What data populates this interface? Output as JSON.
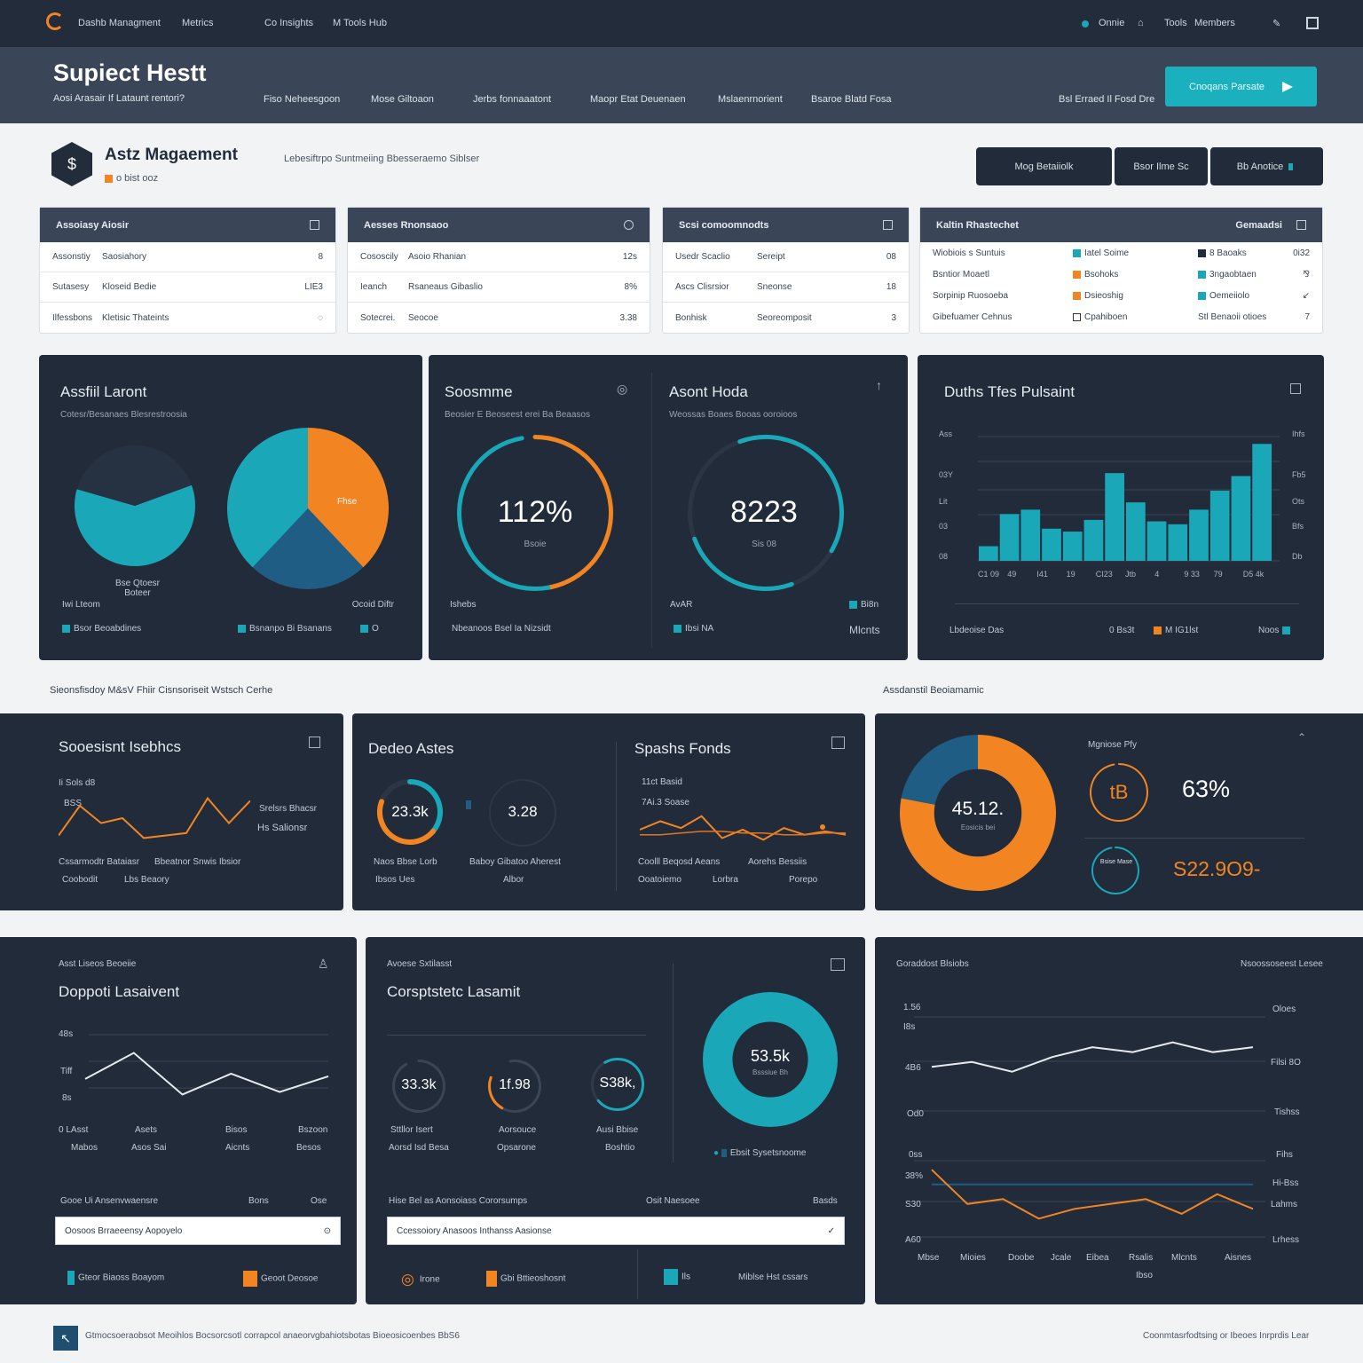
{
  "colors": {
    "teal": "#1aa7b8",
    "orange": "#f28522",
    "navy": "#212b3a",
    "blue": "#1f5d85"
  },
  "topbar": {
    "items": [
      "Dashb Managment",
      "Metrics",
      "Co Insights",
      "M Tools Hub"
    ],
    "right": [
      "Onnie",
      "⌂",
      "Tools",
      "Members",
      "✎"
    ]
  },
  "header": {
    "title": "Supiect Hestt",
    "subtitle": "Aosi Arasair If Lataunt rentori?",
    "tabs": [
      "Fiso Neheesgoon",
      "Mose Giltoaon",
      "Jerbs fonnaaatont",
      "Maopr Etat Deuenaen",
      "Mslaenrnorient",
      "Bsaroe Blatd Fosa"
    ],
    "note": "Bsl Erraed Il Fosd Dre",
    "cta": "Cnoqans Parsate"
  },
  "brand": {
    "title": "Astz Magaement",
    "badge": "o bist ooz",
    "desc": "Lebesiftrpo Suntmeiing Bbesseraemo Siblser"
  },
  "actions": [
    {
      "label": "Mog Betaiiolk"
    },
    {
      "label": "Bsor Ilme Sc"
    },
    {
      "label": "Bb   Anotice"
    }
  ],
  "small_panels": [
    {
      "title": "Assoiasy Aiosir",
      "rows": [
        [
          "Assonstiy",
          "Saosiahory",
          "8"
        ],
        [
          "Sutasesy",
          "Kloseid Bedie",
          "LIE3"
        ],
        [
          "Ilfessbons",
          "Kletisic Thateints",
          "◌"
        ]
      ]
    },
    {
      "title": "Aesses Rnonsaoo",
      "rows": [
        [
          "Cososcily",
          "Asoio Rhanian",
          "12s"
        ],
        [
          "Ieanch",
          "Rsaneaus Gibaslio",
          "8%"
        ],
        [
          "Sotecrei.",
          "Seocoe",
          "3.38"
        ]
      ]
    },
    {
      "title": "Scsi comoomnodts",
      "rows": [
        [
          "Usedr Scaclio",
          "Sereipt",
          "08"
        ],
        [
          "Ascs Clisrsior",
          "Sneonse",
          "18"
        ],
        [
          "Bonhisk",
          "Seoreomposit",
          "3"
        ]
      ]
    },
    {
      "title": "Kaltin Rhastechet",
      "right": "Gemaadsi",
      "rows": [
        [
          "Wiobiois s Suntuis",
          "Iatel Soime",
          "8 Baoaks",
          "0i32"
        ],
        [
          "Bsntior Moaetl",
          "Bsohoks",
          "3ngaobtaen",
          "⅋"
        ],
        [
          "Sorpinip Ruosoeba",
          "Dsieoshig",
          "Oemeiiolo",
          "↙"
        ],
        [
          "Gibefuamer Cehnus",
          "Cpahiboen",
          "Stl Benaoii otioes",
          "7"
        ]
      ]
    }
  ],
  "panel1": {
    "title": "Assfiil Laront",
    "sub": "Cotesr/Besanaes Blesrestroosia",
    "leg": [
      "Bsor Beoabdines",
      "Bsnanpo Bi Bsanans",
      "O"
    ],
    "left1": "Iwi Lteom",
    "c1": "Bse Qtoesr Boteer",
    "c2": "Ocoid Diftr",
    "pie_label": "Fhse"
  },
  "chart_pies": {
    "type": "pie",
    "left": [
      {
        "value": 60,
        "color": "#1aa7b8"
      },
      {
        "value": 40,
        "color": "#263241"
      }
    ],
    "right": [
      {
        "value": 38,
        "color": "#f28522"
      },
      {
        "value": 24,
        "color": "#1f5d85"
      },
      {
        "value": 38,
        "color": "#1aa7b8"
      }
    ]
  },
  "panel2": {
    "title": "Soosmme",
    "sub": "Beosier E Beoseest erei  Ba Beaasos",
    "gauge": "112%",
    "glabel": "Bsoie",
    "b1": "Ishebs",
    "b2": "Nbeanoos Bsel Ia Nizsidt"
  },
  "panel3": {
    "title": "Asont Hoda",
    "sub": "Weossas Boaes Booas ooroioos",
    "gauge": "8223",
    "glabel": "Sis 08",
    "b1": "AvAR",
    "b2": "Bi8n",
    "b3": "Ibsi NA",
    "b4": "Mlcnts"
  },
  "panel4": {
    "title": "Duths Tfes Pulsaint",
    "yl": [
      "Ass",
      "03Y",
      "Lit",
      "03",
      "08"
    ],
    "yr": [
      "Ihfs",
      "Fb5",
      "Ots",
      "Bfs",
      "Db"
    ],
    "xl": [
      "C1 09",
      "49",
      "I41",
      "19",
      "CI23",
      "Jtb",
      "4",
      "9 33",
      "79",
      "D5 4k"
    ],
    "foot": "Lbdeoise Das",
    "leg1": "0 Bs3t",
    "leg2": "M IG1lst",
    "leg3": "Noos"
  },
  "chart_bars": {
    "type": "bar",
    "values": [
      10,
      32,
      35,
      22,
      20,
      28,
      60,
      40,
      27,
      25,
      35,
      48,
      58,
      80
    ],
    "color": "#1aa7b8",
    "ylim": [
      0,
      85
    ]
  },
  "sec2": {
    "left": "Sieonsfisdoy M&sV Fhiir Cisnsoriseit Wstsch Cerhe",
    "right": "Assdanstil Beoiamamic"
  },
  "panel5": {
    "title": "Sooesisnt Isebhcs",
    "l1": "Ii Sols d8",
    "l2": "BSS",
    "r1": "Srelsrs Bhacsr",
    "r2": "Hs Salionsr",
    "b1": "Cssarmodtr Bataiasr",
    "b2": "Bbeatnor Snwis Ibsior",
    "b3": "Coobodit",
    "b4": "Lbs Beaory"
  },
  "chart_line5": {
    "type": "line",
    "values": [
      6,
      30,
      16,
      20,
      4,
      6,
      8,
      36,
      16,
      34
    ],
    "color": "#f28522",
    "ylim": [
      0,
      40
    ]
  },
  "panel6": {
    "title": "Dedeo Astes",
    "g1": "23.3k",
    "g2": "3.28",
    "b1": "Naos Bbse Lorb",
    "b2": "Ibsos Ues",
    "b3": "Baboy Gibatoo Aherest",
    "b4": "Albor"
  },
  "panel7": {
    "title": "Spashs Fonds",
    "l1": "11ct Basid",
    "l2": "7Ai.3 Soase",
    "b1": "Coolll Beqosd Aeans",
    "b2": "Aorehs Bessiis",
    "b3": "Ooatoiemo",
    "b4": "Lorbra",
    "b5": "Porepo"
  },
  "chart_line7": {
    "type": "line",
    "series": [
      {
        "name": "",
        "values": [
          20,
          30,
          22,
          36,
          10,
          20,
          8,
          22,
          14,
          18,
          14
        ],
        "color": "#f28522"
      },
      {
        "name": "",
        "values": [
          14,
          14,
          16,
          18,
          18,
          16,
          16,
          14,
          14,
          16,
          16
        ],
        "color": "#e07621"
      }
    ],
    "ylim": [
      0,
      40
    ]
  },
  "panel8": {
    "donut": "45.12.",
    "dlabel": "Eosicis bei",
    "g1": "tB",
    "pct": "63%",
    "header": "Mgniose Pfy",
    "g2lbl": "Bsise Mase",
    "money": "S22.9O9-"
  },
  "chart_donut8": {
    "type": "pie",
    "values": [
      {
        "value": 78,
        "color": "#f28522"
      },
      {
        "value": 22,
        "color": "#1f5d85"
      }
    ]
  },
  "panel9": {
    "tag": "Asst Liseos Beoeiie",
    "title": "Doppoti Lasaivent",
    "y": [
      "48s",
      "Tiff",
      "8s"
    ],
    "x": [
      "0 LAsst",
      "Asets",
      "Bisos",
      "Bszoon"
    ],
    "x2": [
      "Mabos",
      "Asos Sai",
      "Aicnts",
      "Besos"
    ],
    "flabel": "Gooe Ui Ansenvwaensre",
    "fmid": "Bons",
    "fright": "Ose",
    "field": "Oosoos Brraeeensy Aopoyelo",
    "f1": "Gteor Biaoss Boayom",
    "f2": "Geoot Deosoe"
  },
  "chart_line9": {
    "type": "line",
    "values": [
      26,
      46,
      14,
      30,
      16,
      28
    ],
    "color": "#e7ebf0",
    "ylim": [
      0,
      60
    ]
  },
  "panel10": {
    "tag": "Avoese Sxtilasst",
    "title": "Corsptstetc Lasamit",
    "g": [
      "33.3k",
      "1f.98",
      "S38k,"
    ],
    "gl": [
      "Sttllor Isert",
      "Aorsouce",
      "Ausi Bbise"
    ],
    "gl2": [
      "Aorsd Isd Besa",
      "Opsarone",
      "Boshtio"
    ],
    "donut": "53.5k",
    "dsub": "Bsssiue Bh",
    "dleg": "Ebsit Sysetsnoome",
    "flabel": "Hise Bel as Aonsoiass Cororsumps",
    "fmid": "Osit Naesoee",
    "fright": "Basds",
    "field": "Ccessoiory Anasoos Inthanss Aasionse",
    "f1": "Irone",
    "f2": "Gbi Bttieoshosnt",
    "f3": "Ils",
    "f4": "Miblse Hst cssars"
  },
  "chart_donut10": {
    "type": "pie",
    "values": [
      {
        "value": 100,
        "color": "#1aa7b8"
      }
    ]
  },
  "panel11": {
    "tag": "Goraddost Blsiobs",
    "right": "Nsoossoseest Lesee",
    "yl": [
      "1.56",
      "I8s",
      "4B6",
      "Od0",
      "0ss",
      "38%",
      "S30",
      "A60"
    ],
    "yr": [
      "Oloes",
      "Filsi 8O",
      "Tishss",
      "Fihs",
      "Hi-Bss",
      "Lahms",
      "Lrhess"
    ],
    "xl": [
      "Mbse",
      "Mioies",
      "Doobe",
      "Jcale",
      "Eibea",
      "Rsalis",
      "Mlcnts",
      "Aisnes"
    ],
    "x2": "Ibso"
  },
  "chart_line11": {
    "type": "line",
    "series": [
      {
        "name": "",
        "values": [
          76,
          78,
          74,
          80,
          84,
          82,
          86,
          82,
          84
        ],
        "color": "#e7ebf0"
      },
      {
        "name": "",
        "values": [
          28,
          28,
          28,
          28,
          28,
          28,
          28,
          28,
          28
        ],
        "color": "#1f5d85"
      },
      {
        "name": "",
        "values": [
          34,
          20,
          22,
          14,
          18,
          20,
          22,
          16,
          24,
          18
        ],
        "color": "#f28522"
      }
    ],
    "ylim": [
      0,
      100
    ]
  },
  "footer": {
    "left": "Gtmocsoeraobsot Meoihlos Bocsorcsotl corrapcol anaeorvgbahiotsbotas Bioeosicoenbes BbS6",
    "right": "Coonmtasrfodtsing or Ibeoes Inrprdis Lear"
  }
}
